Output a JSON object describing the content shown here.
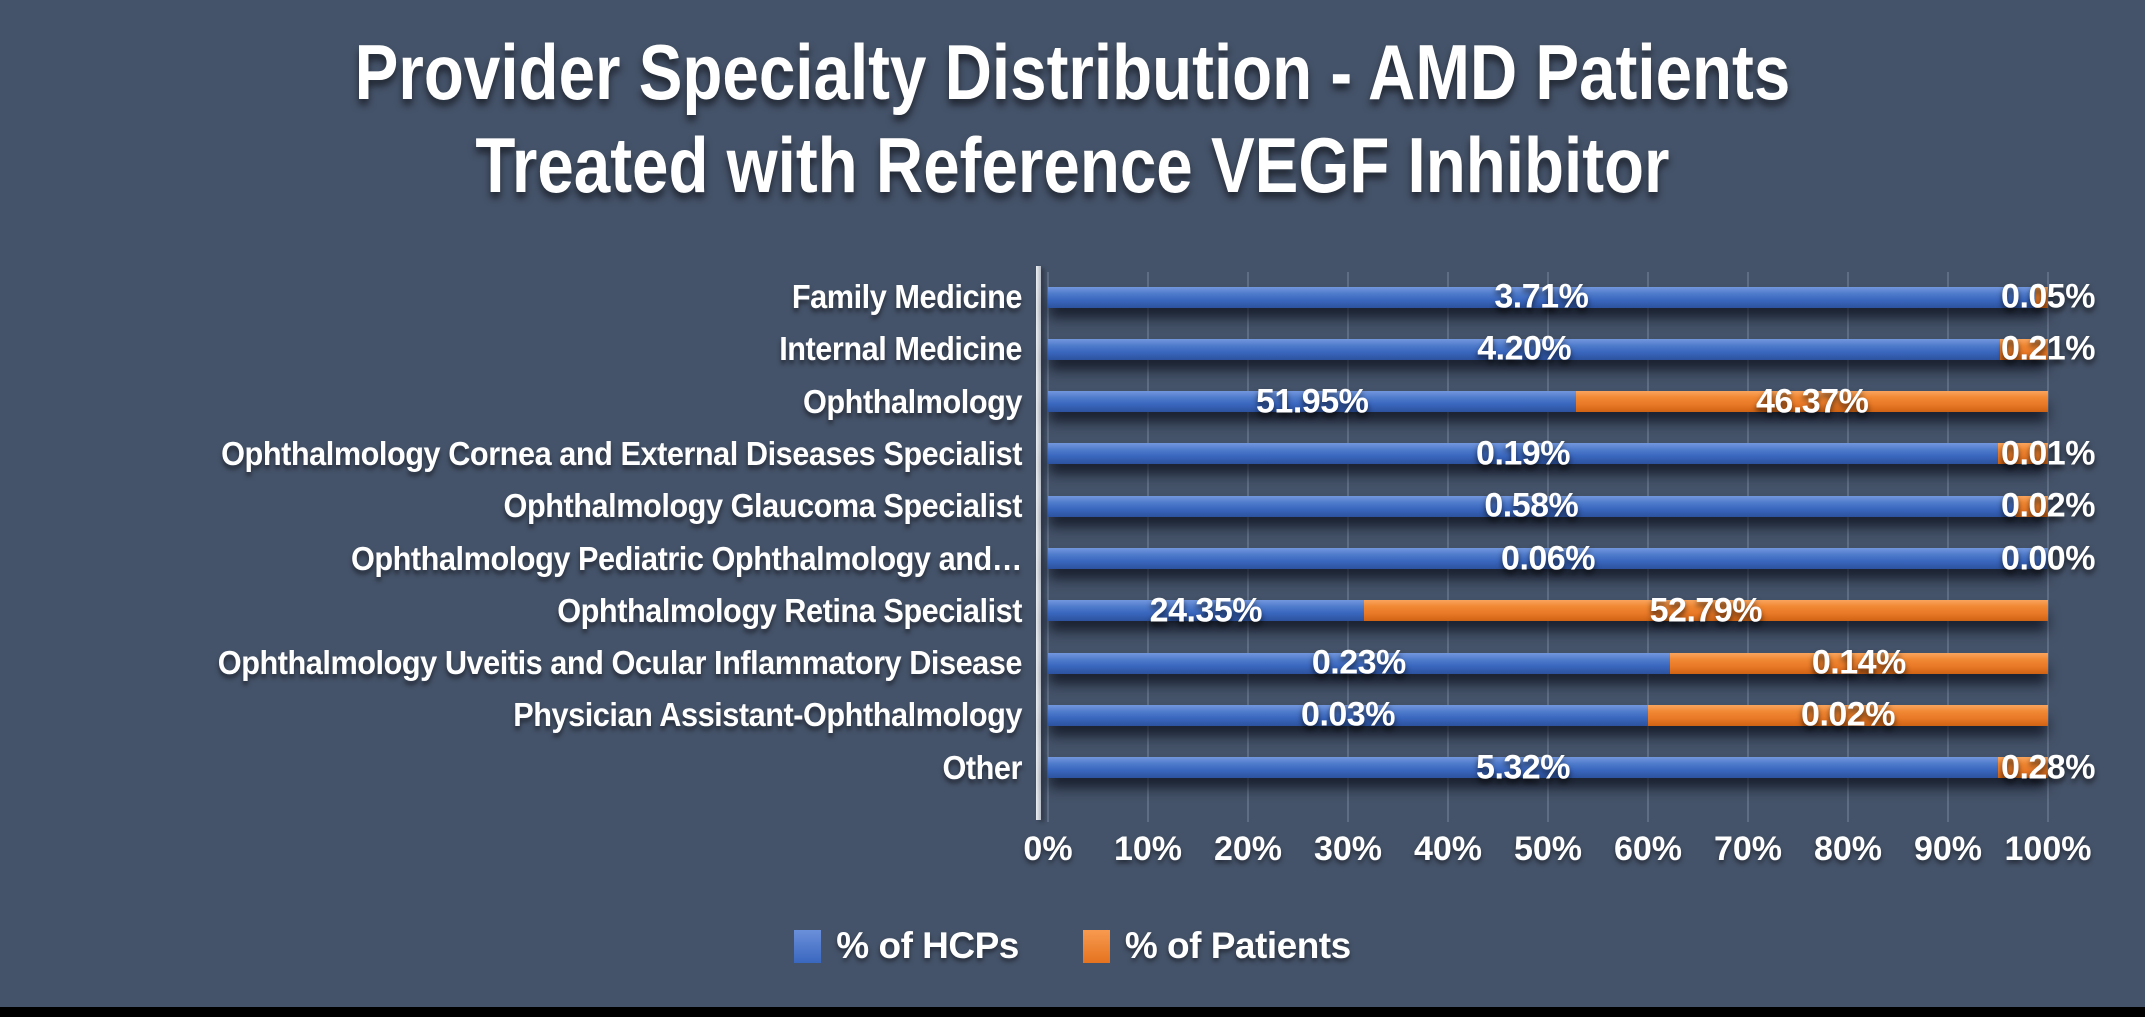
{
  "chart_data": {
    "type": "bar",
    "orientation": "horizontal",
    "stacking": "100%",
    "title": "Provider Specialty Distribution - AMD Patients Treated with Reference VEGF Inhibitor",
    "title_lines": [
      "Provider Specialty Distribution - AMD Patients",
      "Treated with Reference VEGF Inhibitor"
    ],
    "categories": [
      "Family Medicine",
      "Internal Medicine",
      "Ophthalmology",
      "Ophthalmology Cornea and External Diseases Specialist",
      "Ophthalmology Glaucoma Specialist",
      "Ophthalmology Pediatric Ophthalmology and…",
      "Ophthalmology Retina Specialist",
      "Ophthalmology Uveitis and Ocular Inflammatory Disease",
      "Physician Assistant-Ophthalmology",
      "Other"
    ],
    "series": [
      {
        "name": "% of HCPs",
        "color": "#4472C4",
        "values": [
          3.71,
          4.2,
          51.95,
          0.19,
          0.58,
          0.06,
          24.35,
          0.23,
          0.03,
          5.32
        ],
        "data_labels": [
          "3.71%",
          "4.20%",
          "51.95%",
          "0.19%",
          "0.58%",
          "0.06%",
          "24.35%",
          "0.23%",
          "0.03%",
          "5.32%"
        ]
      },
      {
        "name": "% of Patients",
        "color": "#ED7D31",
        "values": [
          0.05,
          0.21,
          46.37,
          0.01,
          0.02,
          0.0,
          52.79,
          0.14,
          0.02,
          0.28
        ],
        "data_labels": [
          "0.05%",
          "0.21%",
          "46.37%",
          "0.01%",
          "0.02%",
          "0.00%",
          "52.79%",
          "0.14%",
          "0.02%",
          "0.28%"
        ]
      }
    ],
    "x_axis": {
      "min": 0,
      "max": 100,
      "tick_labels": [
        "0%",
        "10%",
        "20%",
        "30%",
        "40%",
        "50%",
        "60%",
        "70%",
        "80%",
        "90%",
        "100%"
      ],
      "gridlines": true
    },
    "legend": {
      "position": "bottom",
      "entries": [
        "% of HCPs",
        "% of Patients"
      ]
    },
    "colors": {
      "background": "#45536A",
      "text": "#FFFFFF",
      "hcps_blue": "#4472C4",
      "patients_orange": "#ED7D31",
      "bottom_strip": "#000000"
    }
  }
}
